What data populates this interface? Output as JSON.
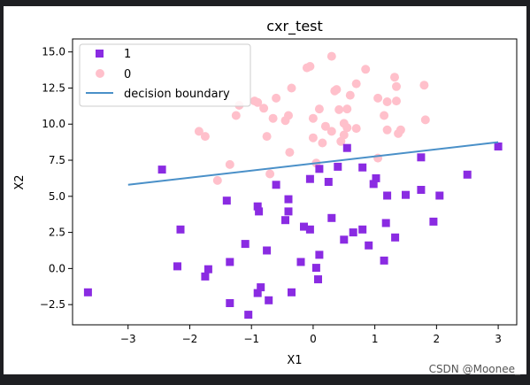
{
  "watermark": "CSDN @Moonee_",
  "colors": {
    "frame_bg": "#1e1f22",
    "figure_bg": "#ffffff",
    "class1": "#8a2be2",
    "class0": "#ffc0cb",
    "boundary": "#4a90c8"
  },
  "chart_data": {
    "type": "scatter",
    "title": "cxr_test",
    "xlabel": "X1",
    "ylabel": "X2",
    "xlim": [
      -3.9,
      3.3
    ],
    "ylim": [
      -3.9,
      15.9
    ],
    "xticks": [
      -3,
      -2,
      -1,
      0,
      1,
      2,
      3
    ],
    "xtick_labels": [
      "−3",
      "−2",
      "−1",
      "0",
      "1",
      "2",
      "3"
    ],
    "yticks": [
      -2.5,
      0.0,
      2.5,
      5.0,
      7.5,
      10.0,
      12.5,
      15.0
    ],
    "ytick_labels": [
      "−2.5",
      "0.0",
      "2.5",
      "5.0",
      "7.5",
      "10.0",
      "12.5",
      "15.0"
    ],
    "grid": false,
    "legend_position": "top-left",
    "legend": [
      "1",
      "0",
      "decision boundary"
    ],
    "series": [
      {
        "name": "1",
        "marker": "square",
        "points": [
          [
            -3.65,
            -1.65
          ],
          [
            -2.45,
            6.85
          ],
          [
            -2.2,
            0.15
          ],
          [
            -2.15,
            2.7
          ],
          [
            -1.75,
            -0.55
          ],
          [
            -1.7,
            -0.05
          ],
          [
            -1.4,
            4.7
          ],
          [
            -1.35,
            0.45
          ],
          [
            -1.35,
            -2.4
          ],
          [
            -1.1,
            1.7
          ],
          [
            -1.05,
            -3.2
          ],
          [
            -0.9,
            4.3
          ],
          [
            -0.88,
            3.95
          ],
          [
            -0.9,
            -1.7
          ],
          [
            -0.85,
            -1.3
          ],
          [
            -0.75,
            1.25
          ],
          [
            -0.72,
            -2.2
          ],
          [
            -0.6,
            5.8
          ],
          [
            -0.45,
            3.35
          ],
          [
            -0.4,
            4.8
          ],
          [
            -0.4,
            3.95
          ],
          [
            -0.35,
            -1.65
          ],
          [
            -0.2,
            0.45
          ],
          [
            -0.15,
            2.9
          ],
          [
            -0.05,
            2.7
          ],
          [
            -0.05,
            6.2
          ],
          [
            0.05,
            0.05
          ],
          [
            0.08,
            -0.75
          ],
          [
            0.1,
            6.9
          ],
          [
            0.1,
            0.95
          ],
          [
            0.25,
            6.0
          ],
          [
            0.3,
            3.5
          ],
          [
            0.4,
            7.05
          ],
          [
            0.5,
            2.0
          ],
          [
            0.55,
            8.35
          ],
          [
            0.65,
            2.5
          ],
          [
            0.8,
            2.7
          ],
          [
            0.8,
            7.0
          ],
          [
            0.9,
            1.6
          ],
          [
            0.98,
            5.85
          ],
          [
            1.02,
            6.25
          ],
          [
            1.15,
            0.55
          ],
          [
            1.18,
            3.15
          ],
          [
            1.2,
            5.05
          ],
          [
            1.33,
            2.15
          ],
          [
            1.5,
            5.1
          ],
          [
            1.75,
            7.7
          ],
          [
            1.75,
            5.45
          ],
          [
            1.95,
            3.25
          ],
          [
            2.05,
            5.05
          ],
          [
            2.5,
            6.5
          ],
          [
            3.0,
            8.45
          ]
        ]
      },
      {
        "name": "0",
        "marker": "circle",
        "points": [
          [
            -1.85,
            9.5
          ],
          [
            -1.75,
            9.15
          ],
          [
            -1.55,
            6.1
          ],
          [
            -1.35,
            7.2
          ],
          [
            -1.25,
            10.6
          ],
          [
            -1.2,
            11.3
          ],
          [
            -0.95,
            11.6
          ],
          [
            -0.9,
            11.5
          ],
          [
            -0.8,
            11.1
          ],
          [
            -0.75,
            9.15
          ],
          [
            -0.7,
            6.55
          ],
          [
            -0.65,
            10.4
          ],
          [
            -0.6,
            11.8
          ],
          [
            -0.45,
            10.25
          ],
          [
            -0.4,
            10.6
          ],
          [
            -0.38,
            8.05
          ],
          [
            -0.35,
            12.5
          ],
          [
            -0.1,
            13.9
          ],
          [
            -0.05,
            14.0
          ],
          [
            0.0,
            10.4
          ],
          [
            0.0,
            9.05
          ],
          [
            0.05,
            7.3
          ],
          [
            0.1,
            11.05
          ],
          [
            0.15,
            8.7
          ],
          [
            0.2,
            9.85
          ],
          [
            0.3,
            9.5
          ],
          [
            0.3,
            14.7
          ],
          [
            0.35,
            12.3
          ],
          [
            0.38,
            12.4
          ],
          [
            0.42,
            11.0
          ],
          [
            0.45,
            8.8
          ],
          [
            0.5,
            9.25
          ],
          [
            0.5,
            10.05
          ],
          [
            0.55,
            11.05
          ],
          [
            0.55,
            9.75
          ],
          [
            0.6,
            12.0
          ],
          [
            0.7,
            9.7
          ],
          [
            0.7,
            12.8
          ],
          [
            0.85,
            13.8
          ],
          [
            1.05,
            7.65
          ],
          [
            1.05,
            11.8
          ],
          [
            1.15,
            10.6
          ],
          [
            1.2,
            11.55
          ],
          [
            1.2,
            9.6
          ],
          [
            1.32,
            13.25
          ],
          [
            1.35,
            11.6
          ],
          [
            1.35,
            12.6
          ],
          [
            1.38,
            9.35
          ],
          [
            1.42,
            9.6
          ],
          [
            1.8,
            12.7
          ],
          [
            1.82,
            10.3
          ]
        ]
      }
    ],
    "boundary_line": {
      "name": "decision boundary",
      "x": [
        -3.0,
        3.0
      ],
      "y": [
        5.8,
        8.75
      ]
    }
  }
}
